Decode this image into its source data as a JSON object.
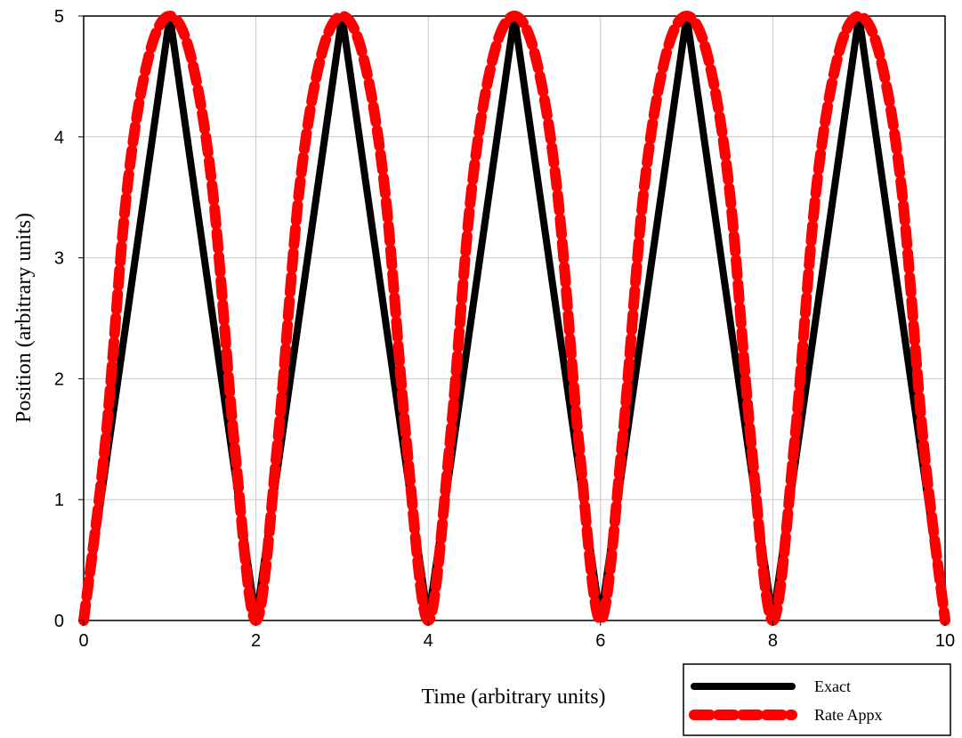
{
  "chart_data": {
    "type": "line",
    "xlabel": "Time (arbitrary units)",
    "ylabel": "Position (arbitrary units)",
    "xlim": [
      0,
      10
    ],
    "ylim": [
      0,
      5
    ],
    "x_ticks": [
      0,
      2,
      4,
      6,
      8,
      10
    ],
    "y_ticks": [
      0,
      1,
      2,
      3,
      4,
      5
    ],
    "grid": true,
    "legend_position": "bottom-right",
    "series": [
      {
        "name": "Exact",
        "color": "#000000",
        "style": "solid",
        "x": [
          0,
          1,
          2,
          3,
          4,
          5,
          6,
          7,
          8,
          9,
          10
        ],
        "y": [
          0,
          5,
          0,
          5,
          0,
          5,
          0,
          5,
          0,
          5,
          0
        ]
      },
      {
        "name": "Rate Appx",
        "color": "#ff0000",
        "style": "dashed",
        "x": [
          0,
          0.25,
          0.5,
          0.75,
          1,
          1.25,
          1.5,
          1.75,
          2,
          2.25,
          2.5,
          2.75,
          3,
          3.25,
          3.5,
          3.75,
          4,
          4.25,
          4.5,
          4.75,
          5,
          5.25,
          5.5,
          5.75,
          6,
          6.25,
          6.5,
          6.75,
          7,
          7.25,
          7.5,
          7.75,
          8,
          8.25,
          8.5,
          8.75,
          9,
          9.25,
          9.5,
          9.75,
          10
        ],
        "y": [
          0,
          1.46,
          3.54,
          4.65,
          5,
          4.65,
          3.54,
          1.46,
          0,
          1.46,
          3.54,
          4.65,
          5,
          4.65,
          3.54,
          1.46,
          0,
          1.46,
          3.54,
          4.65,
          5,
          4.65,
          3.54,
          1.46,
          0,
          1.46,
          3.54,
          4.65,
          5,
          4.65,
          3.54,
          1.46,
          0,
          1.46,
          3.54,
          4.65,
          5,
          4.65,
          3.54,
          1.46,
          0
        ]
      }
    ]
  }
}
